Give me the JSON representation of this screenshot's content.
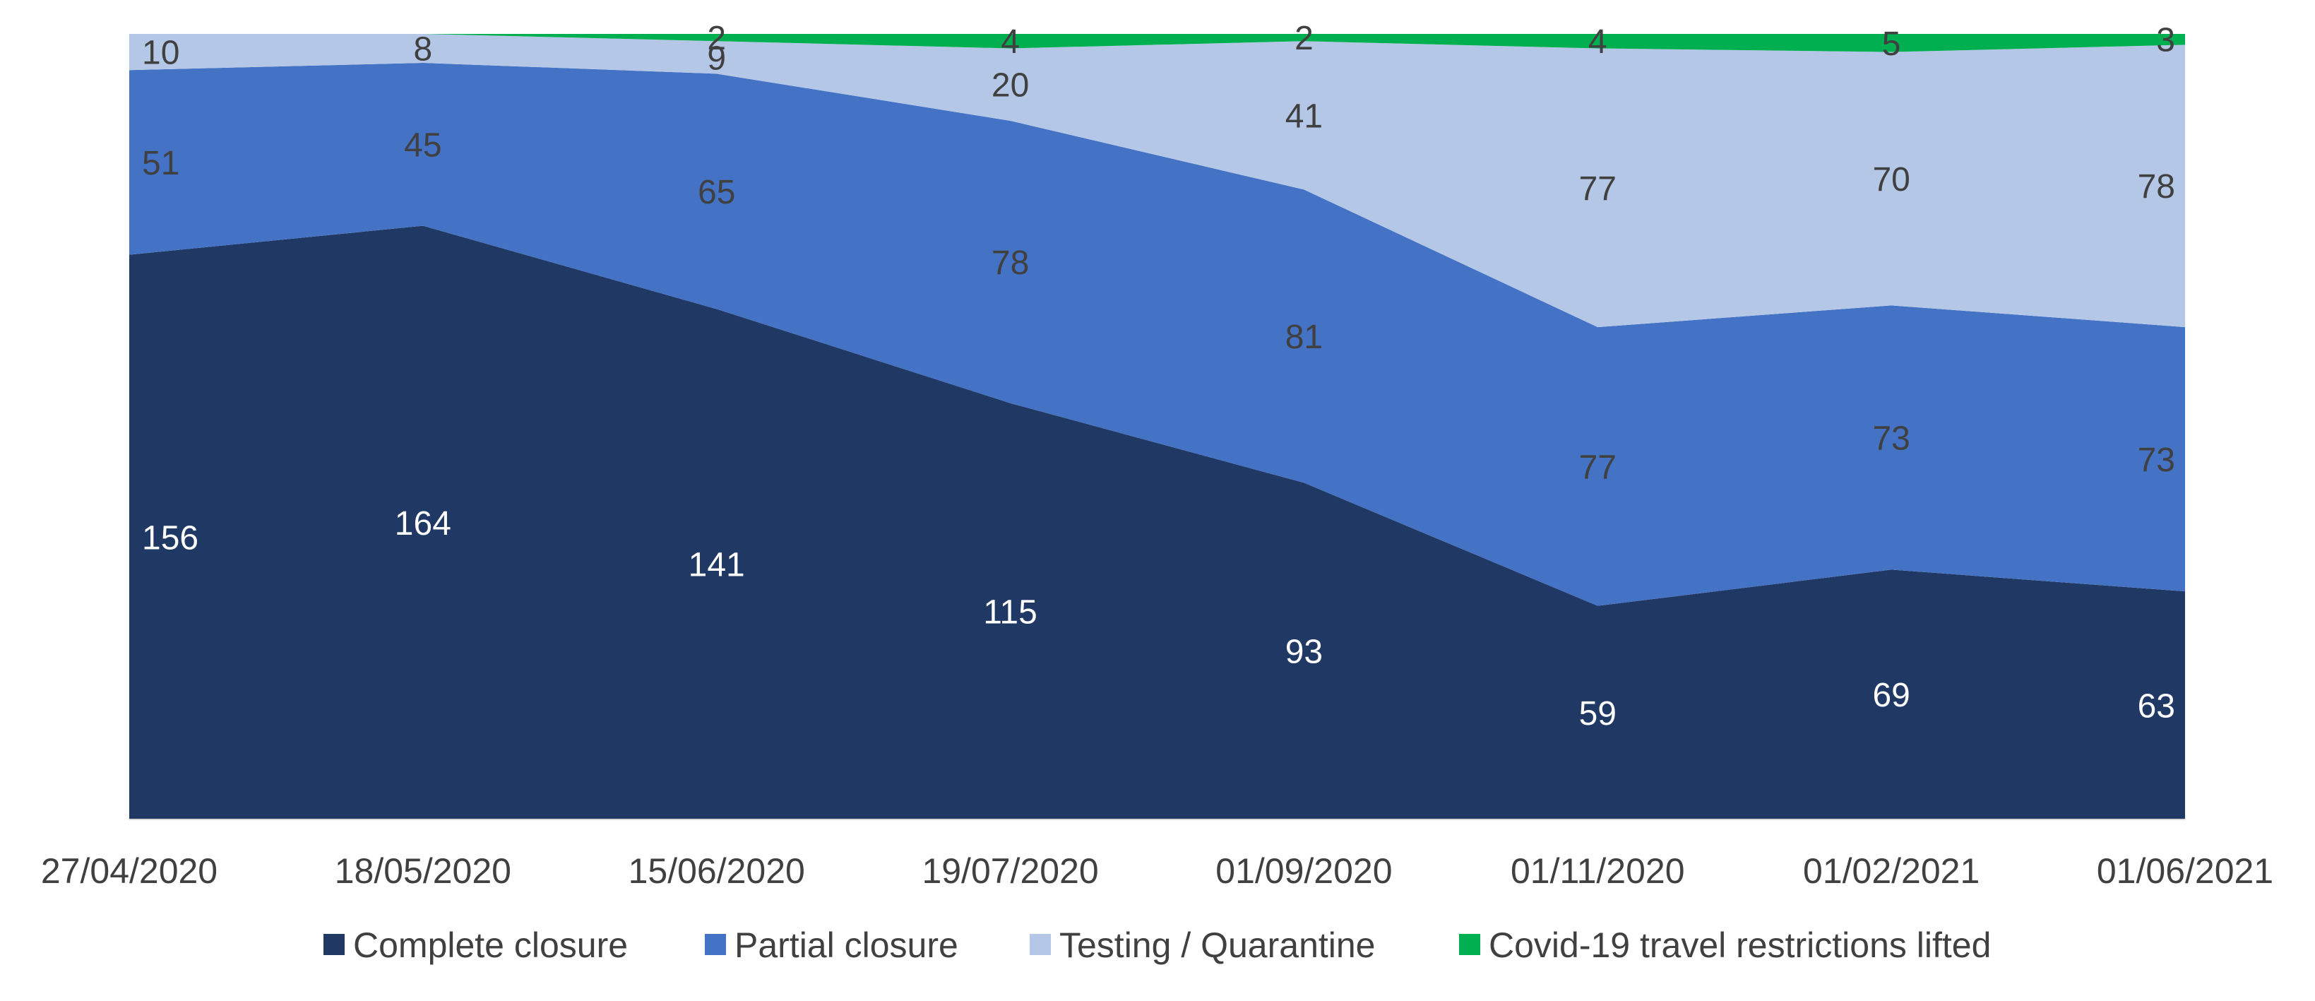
{
  "chart_data": {
    "type": "area",
    "stacked": true,
    "categories": [
      "27/04/2020",
      "18/05/2020",
      "15/06/2020",
      "19/07/2020",
      "01/09/2020",
      "01/11/2020",
      "01/02/2021",
      "01/06/2021"
    ],
    "series": [
      {
        "name": "Complete closure",
        "values": [
          156,
          164,
          141,
          115,
          93,
          59,
          69,
          63
        ],
        "color": "#203864",
        "label_color": "#ffffff"
      },
      {
        "name": "Partial closure",
        "values": [
          51,
          45,
          65,
          78,
          81,
          77,
          73,
          73
        ],
        "color": "#4472c4",
        "label_color": "#404040"
      },
      {
        "name": "Testing / Quarantine",
        "values": [
          10,
          8,
          9,
          20,
          41,
          77,
          70,
          78
        ],
        "color": "#b4c7e7",
        "label_color": "#404040"
      },
      {
        "name": "Covid-19 travel restrictions lifted",
        "values": [
          0,
          0,
          2,
          4,
          2,
          4,
          5,
          3
        ],
        "color": "#00b050",
        "label_color": "#404040"
      }
    ],
    "title": "",
    "xlabel": "",
    "ylabel": "",
    "ylim": [
      0,
      217
    ],
    "grid": false,
    "legend_position": "bottom"
  }
}
